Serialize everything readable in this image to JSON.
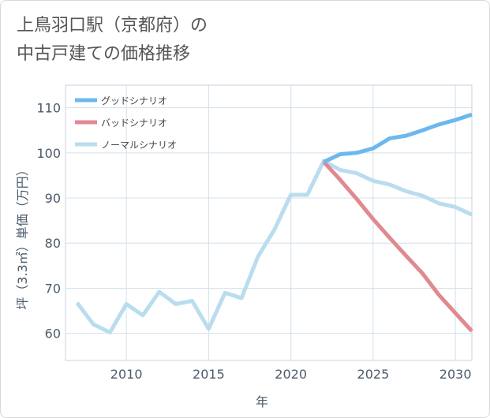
{
  "title_line1": "上鳥羽口駅（京都府）の",
  "title_line2": "中古戸建ての価格推移",
  "chart_data": {
    "type": "line",
    "title": "上鳥羽口駅（京都府）の中古戸建ての価格推移",
    "xlabel": "年",
    "ylabel": "坪（3.3㎡）単価（万円）",
    "xlim": [
      2006.3,
      2031
    ],
    "ylim": [
      54,
      115
    ],
    "xticks": [
      2010,
      2015,
      2020,
      2025,
      2030
    ],
    "yticks": [
      60,
      70,
      80,
      90,
      100,
      110
    ],
    "grid": true,
    "legend_position": "top-left",
    "series": [
      {
        "name": "グッドシナリオ",
        "color": "#6cb8ee",
        "x": [
          2022,
          2023,
          2024,
          2025,
          2026,
          2027,
          2028,
          2029,
          2030,
          2031
        ],
        "values": [
          98.0,
          99.7,
          100.0,
          101.0,
          103.2,
          103.8,
          105.0,
          106.3,
          107.3,
          108.5
        ]
      },
      {
        "name": "バッドシナリオ",
        "color": "#e0898f",
        "x": [
          2022,
          2023,
          2024,
          2025,
          2026,
          2027,
          2028,
          2029,
          2030,
          2031
        ],
        "values": [
          98.0,
          94.0,
          89.8,
          85.3,
          81.2,
          77.2,
          73.3,
          68.5,
          64.5,
          60.5
        ]
      },
      {
        "name": "ノーマルシナリオ",
        "color": "#b9ddef",
        "x": [
          2007,
          2008,
          2009,
          2010,
          2011,
          2012,
          2013,
          2014,
          2015,
          2016,
          2017,
          2018,
          2019,
          2020,
          2021,
          2022,
          2023,
          2024,
          2025,
          2026,
          2027,
          2028,
          2029,
          2030,
          2031
        ],
        "values": [
          66.8,
          62.0,
          60.2,
          66.5,
          64.0,
          69.2,
          66.5,
          67.2,
          61.0,
          69.0,
          67.8,
          77.0,
          83.0,
          90.7,
          90.7,
          98.2,
          96.2,
          95.5,
          93.8,
          93.0,
          91.5,
          90.5,
          88.8,
          88.0,
          86.3
        ]
      }
    ]
  }
}
